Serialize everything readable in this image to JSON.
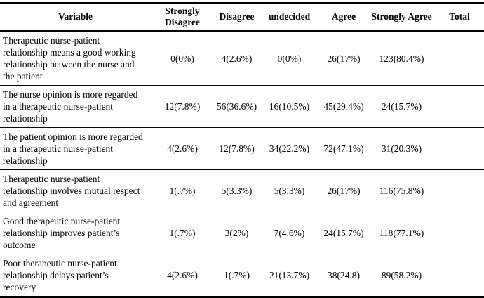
{
  "meta": {
    "background_color": "#ffffff",
    "text_color": "#000000",
    "rule_color": "#000000"
  },
  "table": {
    "columns": {
      "variable": "Variable",
      "strongly_disagree": "Strongly Disagree",
      "disagree": "Disagree",
      "undecided": "undecided",
      "agree": "Agree",
      "strongly_agree": "Strongly Agree",
      "total": "Total"
    },
    "rows": [
      {
        "variable": "Therapeutic nurse-patient relationship means a good working relationship between the nurse and the patient",
        "values": [
          "0(0%)",
          "4(2.6%)",
          "0(0%)",
          "26(17%)",
          "123(80.4%)",
          ""
        ]
      },
      {
        "variable": "The nurse opinion is more regarded in a therapeutic nurse-patient relationship",
        "values": [
          "12(7.8%)",
          "56(36.6%)",
          "16(10.5%)",
          "45(29.4%)",
          "24(15.7%)",
          ""
        ]
      },
      {
        "variable": "The patient opinion is more regarded in a therapeutic nurse-patient relationship",
        "values": [
          "4(2.6%)",
          "12(7.8%)",
          "34(22.2%)",
          "72(47.1%)",
          "31(20.3%)",
          ""
        ]
      },
      {
        "variable": "Therapeutic nurse-patient relationship involves mutual respect and agreement",
        "values": [
          "1(.7%)",
          "5(3.3%)",
          "5(3.3%)",
          "26(17%)",
          "116(75.8%)",
          ""
        ]
      },
      {
        "variable": "Good therapeutic nurse-patient relationship improves patient’s outcome",
        "values": [
          "1(.7%)",
          "3(2%)",
          "7(4.6%)",
          "24(15.7%)",
          "118(77.1%)",
          ""
        ]
      },
      {
        "variable": "Poor therapeutic nurse-patient relationship delays patient’s recovery",
        "values": [
          "4(2.6%)",
          "1(.7%)",
          "21(13.7%)",
          "38(24.8)",
          "89(58.2%)",
          ""
        ]
      }
    ]
  }
}
